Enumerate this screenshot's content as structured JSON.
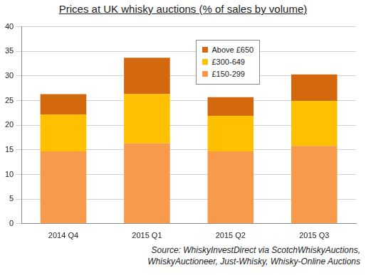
{
  "chart_data": {
    "type": "bar",
    "title": "Prices at UK whisky auctions (% of sales by volume)",
    "source": "Source: WhiskyInvestDirect via ScotchWhiskyAuctions, WhiskyAuctioneer, Just-Whisky, Whisky-Online Auctions",
    "categories": [
      "2014 Q4",
      "2015 Q1",
      "2015 Q2",
      "2015 Q3"
    ],
    "series": [
      {
        "name": "£150-299",
        "color": "#f79a4c",
        "values": [
          14.7,
          16.3,
          14.7,
          15.8
        ]
      },
      {
        "name": "£300-649",
        "color": "#ffc000",
        "values": [
          7.5,
          10.0,
          7.2,
          9.1
        ]
      },
      {
        "name": "Above £650",
        "color": "#d4680e",
        "values": [
          4.1,
          7.4,
          3.8,
          5.4
        ]
      }
    ],
    "ylim": [
      0,
      40
    ],
    "yticks": [
      0,
      5,
      10,
      15,
      20,
      25,
      30,
      35,
      40
    ],
    "grid": true,
    "stacked": true,
    "legend": "upper right"
  }
}
